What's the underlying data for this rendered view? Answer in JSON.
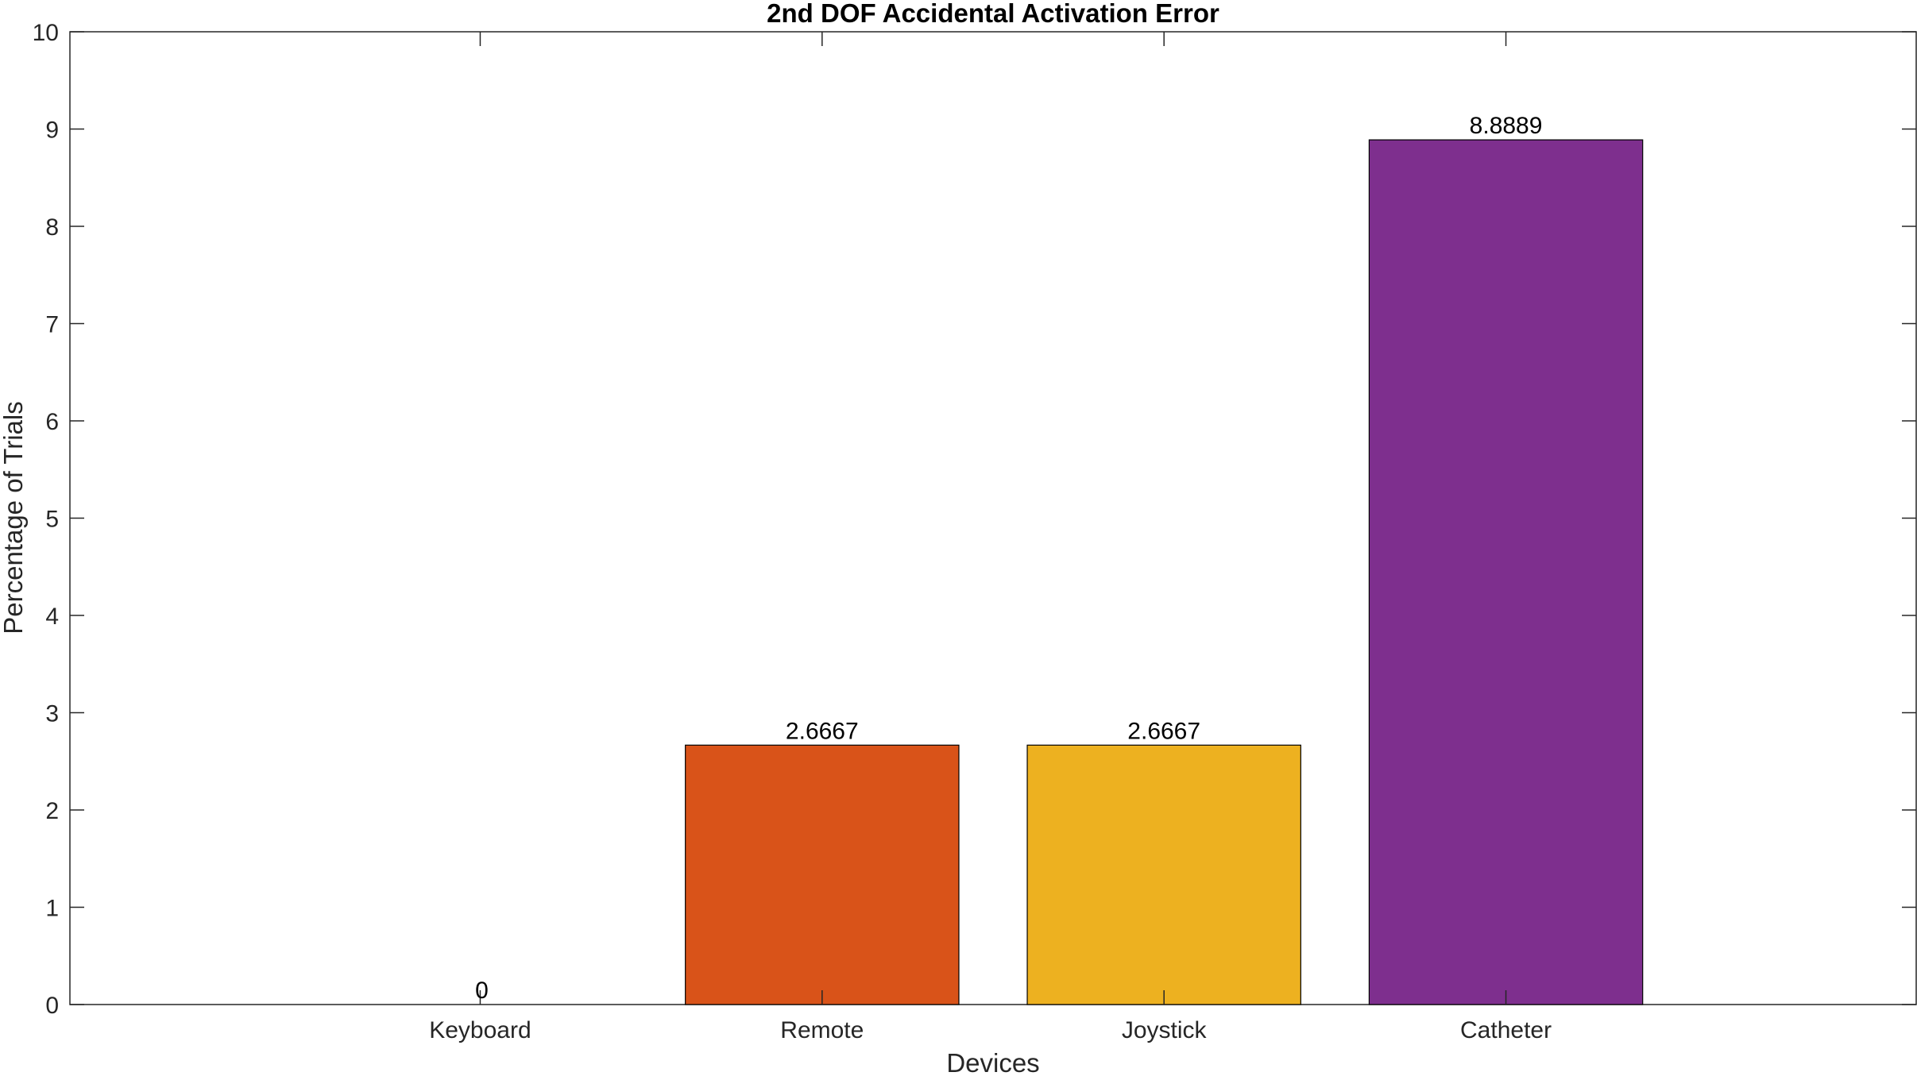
{
  "chart_data": {
    "type": "bar",
    "title": "2nd DOF Accidental Activation Error",
    "xlabel": "Devices",
    "ylabel": "Percentage of Trials",
    "categories": [
      "Keyboard",
      "Remote",
      "Joystick",
      "Catheter"
    ],
    "values": [
      0,
      2.6667,
      2.6667,
      8.8889
    ],
    "value_labels": [
      "0",
      "2.6667",
      "2.6667",
      "8.8889"
    ],
    "colors": [
      "#0072BD",
      "#D95319",
      "#EDB120",
      "#7E2F8E"
    ],
    "ylim": [
      0,
      10
    ],
    "yticks": [
      0,
      1,
      2,
      3,
      4,
      5,
      6,
      7,
      8,
      9,
      10
    ],
    "ytick_labels": [
      "0",
      "1",
      "2",
      "3",
      "4",
      "5",
      "6",
      "7",
      "8",
      "9",
      "10"
    ],
    "grid": false,
    "legend": "none",
    "box": true
  }
}
